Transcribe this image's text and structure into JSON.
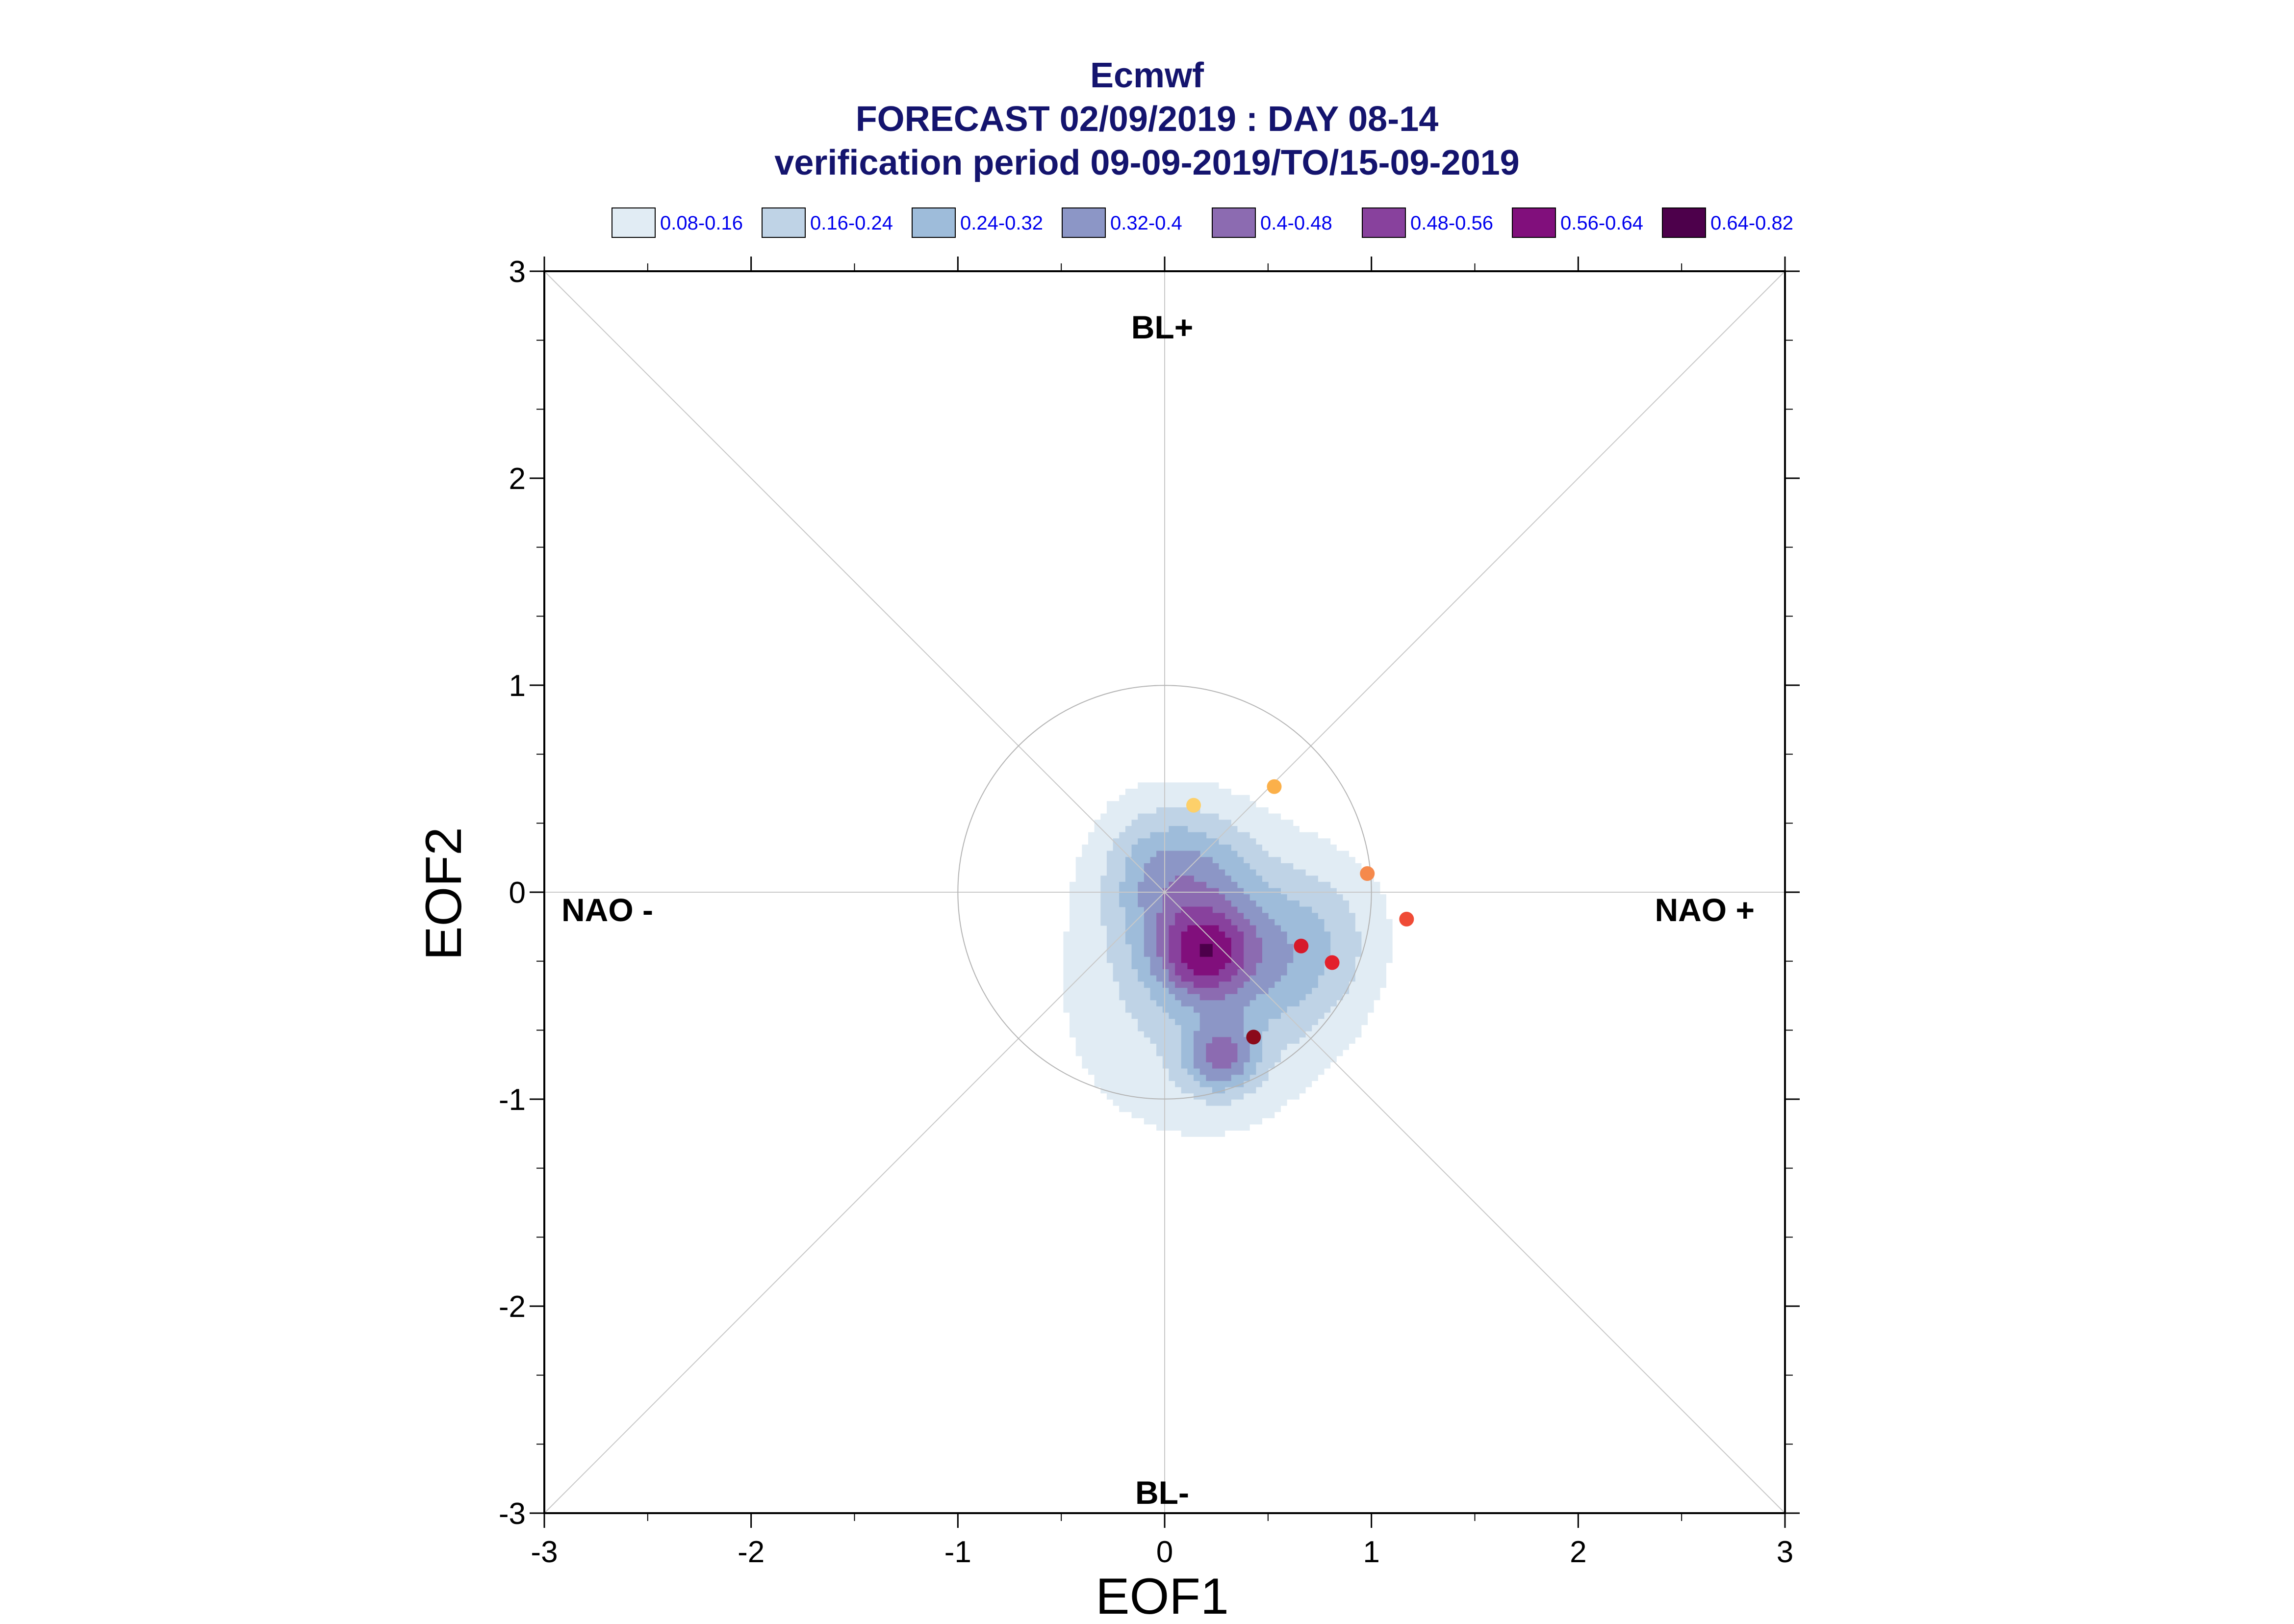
{
  "chart_data": {
    "type": "scatter",
    "title": "Ecmwf",
    "subtitle": "FORECAST 02/09/2019 : DAY 08-14",
    "subtitle2": "verification period 09-09-2019/TO/15-09-2019",
    "xlabel": "EOF1",
    "ylabel": "EOF2",
    "xlim": [
      -3,
      3
    ],
    "ylim": [
      -3,
      3
    ],
    "xticks": [
      "-3",
      "-2",
      "-1",
      "0",
      "1",
      "2",
      "3"
    ],
    "yticks": [
      "3",
      "2",
      "1",
      "0",
      "-1",
      "-2",
      "-3"
    ],
    "grid": "crosshair and diagonals",
    "reference_circle_radius": 1.0,
    "regime_labels": {
      "top": "BL+",
      "bottom": "BL-",
      "left": "NAO -",
      "right": "NAO +"
    },
    "legend": {
      "placement": "top",
      "entries": [
        {
          "label": "0.08-0.16",
          "color": "#e1ecf4"
        },
        {
          "label": "0.16-0.24",
          "color": "#bfd3e6"
        },
        {
          "label": "0.24-0.32",
          "color": "#9ebcda"
        },
        {
          "label": "0.32-0.4",
          "color": "#8c96c6"
        },
        {
          "label": "0.4-0.48",
          "color": "#8c6bb1"
        },
        {
          "label": "0.48-0.56",
          "color": "#88419d"
        },
        {
          "label": "0.56-0.64",
          "color": "#810f7c"
        },
        {
          "label": "0.64-0.82",
          "color": "#4d004b"
        }
      ]
    },
    "density_levels": [
      0.08,
      0.16,
      0.24,
      0.32,
      0.4,
      0.48,
      0.56,
      0.64
    ],
    "density_peaks": [
      {
        "x": 0.18,
        "y": -0.3
      },
      {
        "x": 0.27,
        "y": -0.8
      }
    ],
    "points": [
      {
        "x": 0.14,
        "y": 0.42,
        "color": "#fdd06a"
      },
      {
        "x": 0.53,
        "y": 0.51,
        "color": "#fbb04a"
      },
      {
        "x": 0.98,
        "y": 0.09,
        "color": "#f5894c"
      },
      {
        "x": 1.17,
        "y": -0.13,
        "color": "#ef4b36"
      },
      {
        "x": 0.66,
        "y": -0.26,
        "color": "#d7192a"
      },
      {
        "x": 0.81,
        "y": -0.34,
        "color": "#e3202c"
      },
      {
        "x": 0.43,
        "y": -0.7,
        "color": "#8b0a1a"
      }
    ]
  }
}
